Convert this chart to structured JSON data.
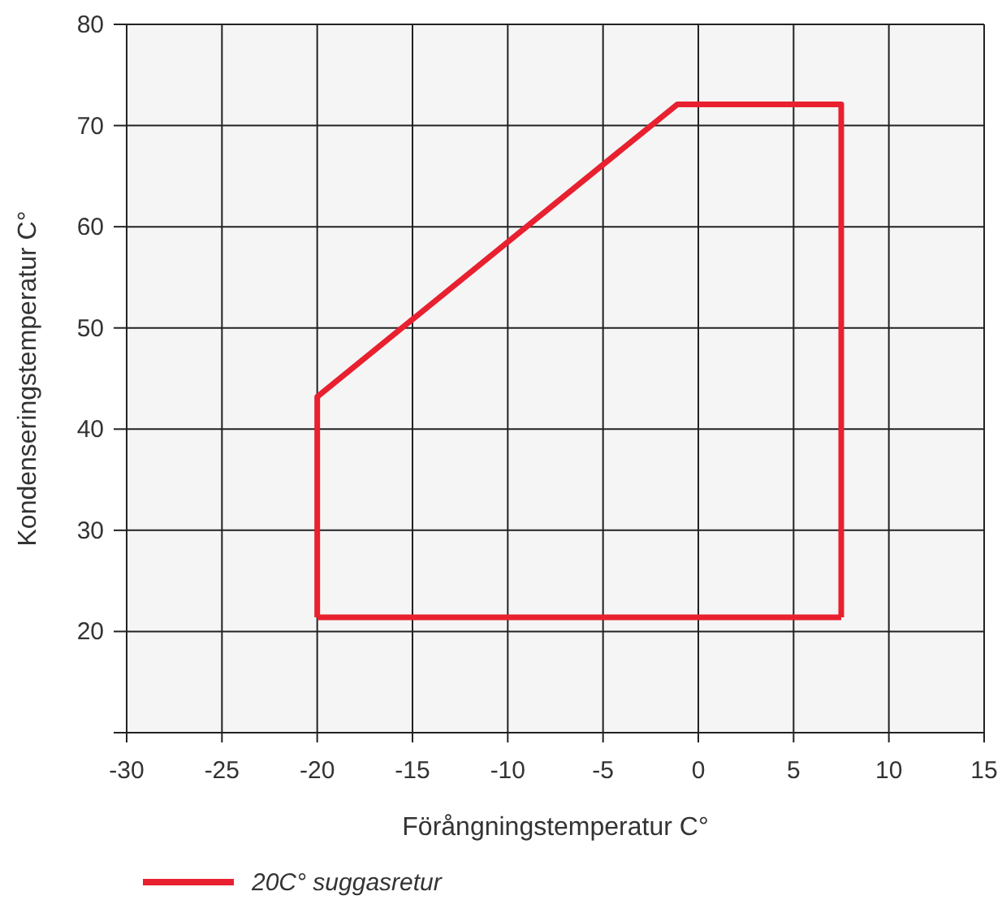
{
  "chart_data": {
    "type": "line",
    "xlabel": "Förångningstemperatur C°",
    "ylabel": "Kondenseringstemperatur C°",
    "series": [
      {
        "name": "20C° suggasretur",
        "color": "#e8202f",
        "x": [
          -20,
          -20,
          -1.1,
          7.5,
          7.5
        ],
        "values": [
          21.4,
          43.2,
          72.1,
          72.1,
          21.4
        ]
      },
      {
        "color": "#e8202f",
        "x": [
          -20,
          7.5
        ],
        "values": [
          21.4,
          21.4
        ]
      }
    ],
    "xlim": [
      -30,
      15
    ],
    "xticks": [
      -30,
      -25,
      -20,
      -15,
      -10,
      -5,
      0,
      5,
      10,
      15
    ],
    "ylim": [
      10,
      80
    ],
    "yticks": [
      {
        "value": 10,
        "label": null
      },
      20,
      30,
      40,
      50,
      60,
      70,
      80
    ],
    "grid": true,
    "legend": "bottom left",
    "marker": "none",
    "line_style": "solid"
  }
}
